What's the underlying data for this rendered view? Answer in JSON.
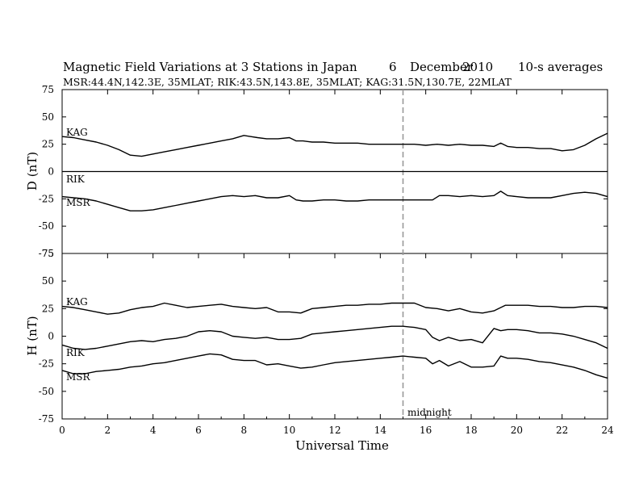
{
  "chart_data": {
    "type": "line",
    "title": {
      "main": "Magnetic Field Variations at 3 Stations in Japan",
      "day": "6",
      "month": "December",
      "year": "2010",
      "note": "10-s averages"
    },
    "subtitle": "MSR:44.4N,142.3E, 35MLAT;  RIK:43.5N,143.8E, 35MLAT;  KAG:31.5N,130.7E, 22MLAT",
    "xlabel": "Universal Time",
    "xlim": [
      0,
      24
    ],
    "xticks": [
      "0",
      "2",
      "4",
      "6",
      "8",
      "10",
      "12",
      "14",
      "16",
      "18",
      "20",
      "22",
      "24"
    ],
    "midnight": {
      "x": 15,
      "label": "midnight"
    },
    "panels": [
      {
        "id": "D",
        "ylabel": "D (nT)",
        "ylim": [
          -75,
          75
        ],
        "yticks": [
          "75",
          "50",
          "25",
          "0",
          "-25",
          "-50",
          "-75"
        ],
        "series": [
          {
            "name": "KAG",
            "x": [
              0,
              0.5,
              1,
              1.5,
              2,
              2.5,
              3,
              3.5,
              4,
              4.5,
              5,
              5.5,
              6,
              6.5,
              7,
              7.5,
              8,
              8.3,
              8.6,
              9,
              9.5,
              10,
              10.3,
              10.6,
              11,
              11.5,
              12,
              12.5,
              13,
              13.5,
              14,
              14.5,
              15,
              15.5,
              16,
              16.5,
              17,
              17.5,
              18,
              18.5,
              19,
              19.3,
              19.6,
              20,
              20.5,
              21,
              21.5,
              22,
              22.5,
              23,
              23.5,
              24
            ],
            "values": [
              32,
              31,
              29,
              27,
              24,
              20,
              15,
              14,
              16,
              18,
              20,
              22,
              24,
              26,
              28,
              30,
              33,
              32,
              31,
              30,
              30,
              31,
              28,
              28,
              27,
              27,
              26,
              26,
              26,
              25,
              25,
              25,
              25,
              25,
              24,
              25,
              24,
              25,
              24,
              24,
              23,
              26,
              23,
              22,
              22,
              21,
              21,
              19,
              20,
              24,
              30,
              35
            ]
          },
          {
            "name": "RIK",
            "x": [
              0,
              24
            ],
            "values": [
              0,
              0
            ]
          },
          {
            "name": "MSR",
            "x": [
              0,
              0.5,
              1,
              1.5,
              2,
              2.5,
              3,
              3.5,
              4,
              4.5,
              5,
              5.5,
              6,
              6.5,
              7,
              7.5,
              8,
              8.5,
              9,
              9.5,
              10,
              10.3,
              10.6,
              11,
              11.5,
              12,
              12.5,
              13,
              13.5,
              14,
              14.5,
              15,
              15.5,
              16,
              16.3,
              16.6,
              17,
              17.5,
              18,
              18.5,
              19,
              19.3,
              19.6,
              20,
              20.5,
              21,
              21.5,
              22,
              22.5,
              23,
              23.5,
              24
            ],
            "values": [
              -23,
              -24,
              -25,
              -27,
              -30,
              -33,
              -36,
              -36,
              -35,
              -33,
              -31,
              -29,
              -27,
              -25,
              -23,
              -22,
              -23,
              -22,
              -24,
              -24,
              -22,
              -26,
              -27,
              -27,
              -26,
              -26,
              -27,
              -27,
              -26,
              -26,
              -26,
              -26,
              -26,
              -26,
              -26,
              -22,
              -22,
              -23,
              -22,
              -23,
              -22,
              -18,
              -22,
              -23,
              -24,
              -24,
              -24,
              -22,
              -20,
              -19,
              -20,
              -23
            ]
          }
        ]
      },
      {
        "id": "H",
        "ylabel": "H (nT)",
        "ylim": [
          -75,
          75
        ],
        "yticks": [
          "75",
          "50",
          "25",
          "0",
          "-25",
          "-50",
          "-75"
        ],
        "series": [
          {
            "name": "KAG",
            "x": [
              0,
              0.5,
              1,
              1.5,
              2,
              2.5,
              3,
              3.5,
              4,
              4.5,
              5,
              5.5,
              6,
              6.5,
              7,
              7.5,
              8,
              8.5,
              9,
              9.5,
              10,
              10.5,
              11,
              11.5,
              12,
              12.5,
              13,
              13.5,
              14,
              14.5,
              15,
              15.5,
              16,
              16.5,
              17,
              17.5,
              18,
              18.5,
              19,
              19.5,
              20,
              20.5,
              21,
              21.5,
              22,
              22.5,
              23,
              23.5,
              24
            ],
            "values": [
              27,
              26,
              24,
              22,
              20,
              21,
              24,
              26,
              27,
              30,
              28,
              26,
              27,
              28,
              29,
              27,
              26,
              25,
              26,
              22,
              22,
              21,
              25,
              26,
              27,
              28,
              28,
              29,
              29,
              30,
              30,
              30,
              26,
              25,
              23,
              25,
              22,
              21,
              23,
              28,
              28,
              28,
              27,
              27,
              26,
              26,
              27,
              27,
              26
            ]
          },
          {
            "name": "RIK",
            "x": [
              0,
              0.5,
              1,
              1.5,
              2,
              2.5,
              3,
              3.5,
              4,
              4.5,
              5,
              5.5,
              6,
              6.5,
              7,
              7.5,
              8,
              8.5,
              9,
              9.5,
              10,
              10.5,
              11,
              11.5,
              12,
              12.5,
              13,
              13.5,
              14,
              14.5,
              15,
              15.5,
              16,
              16.3,
              16.6,
              17,
              17.5,
              18,
              18.5,
              19,
              19.3,
              19.6,
              20,
              20.5,
              21,
              21.5,
              22,
              22.5,
              23,
              23.5,
              24
            ],
            "values": [
              -8,
              -11,
              -12,
              -11,
              -9,
              -7,
              -5,
              -4,
              -5,
              -3,
              -2,
              0,
              4,
              5,
              4,
              0,
              -1,
              -2,
              -1,
              -3,
              -3,
              -2,
              2,
              3,
              4,
              5,
              6,
              7,
              8,
              9,
              9,
              8,
              6,
              -1,
              -4,
              -1,
              -4,
              -3,
              -6,
              7,
              5,
              6,
              6,
              5,
              3,
              3,
              2,
              0,
              -3,
              -6,
              -11
            ]
          },
          {
            "name": "MSR",
            "x": [
              0,
              0.5,
              1,
              1.5,
              2,
              2.5,
              3,
              3.5,
              4,
              4.5,
              5,
              5.5,
              6,
              6.5,
              7,
              7.5,
              8,
              8.5,
              9,
              9.5,
              10,
              10.5,
              11,
              11.5,
              12,
              12.5,
              13,
              13.5,
              14,
              14.5,
              15,
              15.5,
              16,
              16.3,
              16.6,
              17,
              17.5,
              18,
              18.5,
              19,
              19.3,
              19.6,
              20,
              20.5,
              21,
              21.5,
              22,
              22.5,
              23,
              23.5,
              24
            ],
            "values": [
              -31,
              -34,
              -34,
              -32,
              -31,
              -30,
              -28,
              -27,
              -25,
              -24,
              -22,
              -20,
              -18,
              -16,
              -17,
              -21,
              -22,
              -22,
              -26,
              -25,
              -27,
              -29,
              -28,
              -26,
              -24,
              -23,
              -22,
              -21,
              -20,
              -19,
              -18,
              -19,
              -20,
              -25,
              -22,
              -27,
              -23,
              -28,
              -28,
              -27,
              -18,
              -20,
              -20,
              -21,
              -23,
              -24,
              -26,
              -28,
              -31,
              -35,
              -38
            ]
          }
        ]
      }
    ]
  }
}
